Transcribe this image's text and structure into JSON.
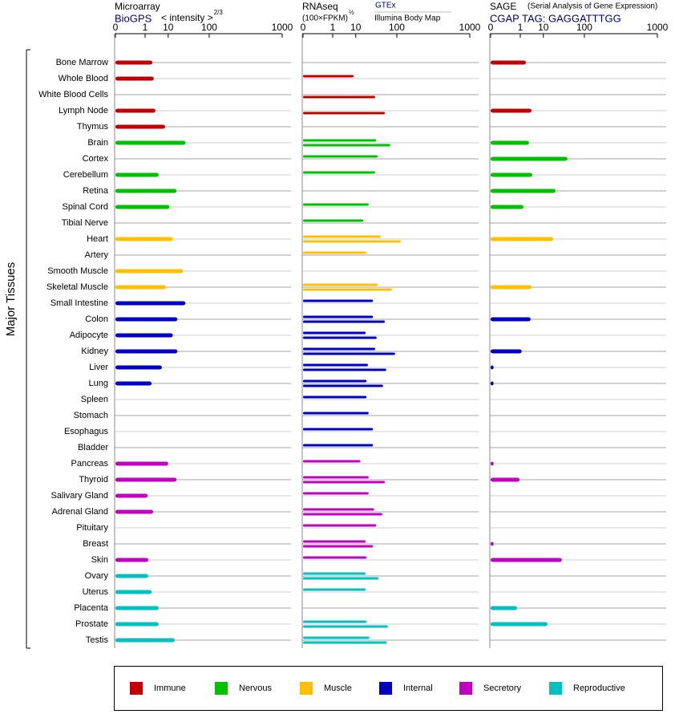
{
  "y_axis_label": "Major Tissues",
  "groups": [
    {
      "name": "Immune",
      "color": "#c00000",
      "tissues": [
        "Bone Marrow",
        "Whole Blood",
        "White Blood Cells",
        "Lymph Node",
        "Thymus"
      ]
    },
    {
      "name": "Nervous",
      "color": "#00c000",
      "tissues": [
        "Brain",
        "Cortex",
        "Cerebellum",
        "Retina",
        "Spinal Cord",
        "Tibial Nerve"
      ]
    },
    {
      "name": "Muscle",
      "color": "#ffc000",
      "tissues": [
        "Heart",
        "Artery",
        "Smooth Muscle",
        "Skeletal Muscle"
      ]
    },
    {
      "name": "Internal",
      "color": "#0000c0",
      "tissues": [
        "Small Intestine",
        "Colon",
        "Adipocyte",
        "Kidney",
        "Liver",
        "Lung",
        "Spleen",
        "Stomach",
        "Esophagus",
        "Bladder"
      ]
    },
    {
      "name": "Secretory",
      "color": "#c000c0",
      "tissues": [
        "Pancreas",
        "Thyroid",
        "Salivary Gland",
        "Adrenal Gland",
        "Pituitary",
        "Breast",
        "Skin"
      ]
    },
    {
      "name": "Reproductive",
      "color": "#00c0c0",
      "tissues": [
        "Ovary",
        "Uterus",
        "Placenta",
        "Prostate",
        "Testis"
      ]
    }
  ],
  "chart_data": [
    {
      "type": "bar",
      "title": "Microarray",
      "subtitle": "BioGPS",
      "axis_label": "< intensity >",
      "axis_label_power": "2/3",
      "xscale": {
        "type": "pow",
        "exponent": 0.25
      },
      "xlim": [
        0,
        1000
      ],
      "xticks": [
        0,
        1,
        10,
        100,
        1000
      ],
      "series": [
        {
          "values": [
            2.4,
            2.8,
            null,
            3.3,
            7.9,
            31,
            null,
            4.5,
            18,
            11,
            null,
            14,
            null,
            27,
            8.4,
            31,
            19,
            14,
            19,
            6,
            2.2,
            null,
            null,
            null,
            null,
            10,
            18,
            1.4,
            2.6,
            null,
            null,
            1.5,
            1.5,
            2.2,
            4.5,
            4.5,
            16
          ]
        }
      ]
    },
    {
      "type": "bar",
      "title": "RNAseq",
      "axis_label": "(100×FPKM)",
      "axis_label_power": "½",
      "xscale": {
        "type": "pow",
        "exponent": 0.25
      },
      "xlim": [
        0,
        1000
      ],
      "xticks": [
        0,
        1,
        10,
        100,
        1000
      ],
      "series": [
        {
          "name": "GTEx",
          "values": [
            null,
            8.4,
            null,
            null,
            null,
            37,
            40,
            35,
            null,
            24,
            17,
            47,
            21,
            null,
            40,
            31,
            31,
            20,
            35,
            23,
            21,
            21,
            24,
            31,
            31,
            14,
            24,
            24,
            33,
            37,
            20,
            21,
            20,
            20,
            null,
            21,
            25
          ]
        },
        {
          "name": "Illumina Body Map",
          "values": [
            null,
            null,
            35,
            58,
            null,
            75,
            null,
            null,
            null,
            null,
            null,
            118,
            null,
            null,
            81,
            null,
            58,
            38,
            93,
            62,
            53,
            null,
            null,
            null,
            null,
            null,
            58,
            null,
            51,
            null,
            31,
            null,
            42,
            null,
            null,
            67,
            64
          ]
        }
      ]
    },
    {
      "type": "bar",
      "title": "SAGE",
      "note": "(Serial Analysis of Gene Expression)",
      "subtitle": "CGAP TAG: GAGGATTTGG",
      "xscale": {
        "type": "pow",
        "exponent": 0.25
      },
      "xlim": [
        0,
        1000
      ],
      "xticks": [
        0,
        1,
        10,
        100,
        1000
      ],
      "series": [
        {
          "values": [
            2.0,
            null,
            null,
            3.6,
            null,
            2.8,
            45,
            3.9,
            23,
            1.5,
            null,
            20,
            null,
            null,
            3.6,
            null,
            3.3,
            null,
            1.2,
            0.0001,
            0.0001,
            null,
            null,
            null,
            null,
            0.0001,
            0.9,
            null,
            null,
            null,
            0.0001,
            33,
            null,
            null,
            0.63,
            13.5,
            null
          ]
        }
      ]
    }
  ]
}
